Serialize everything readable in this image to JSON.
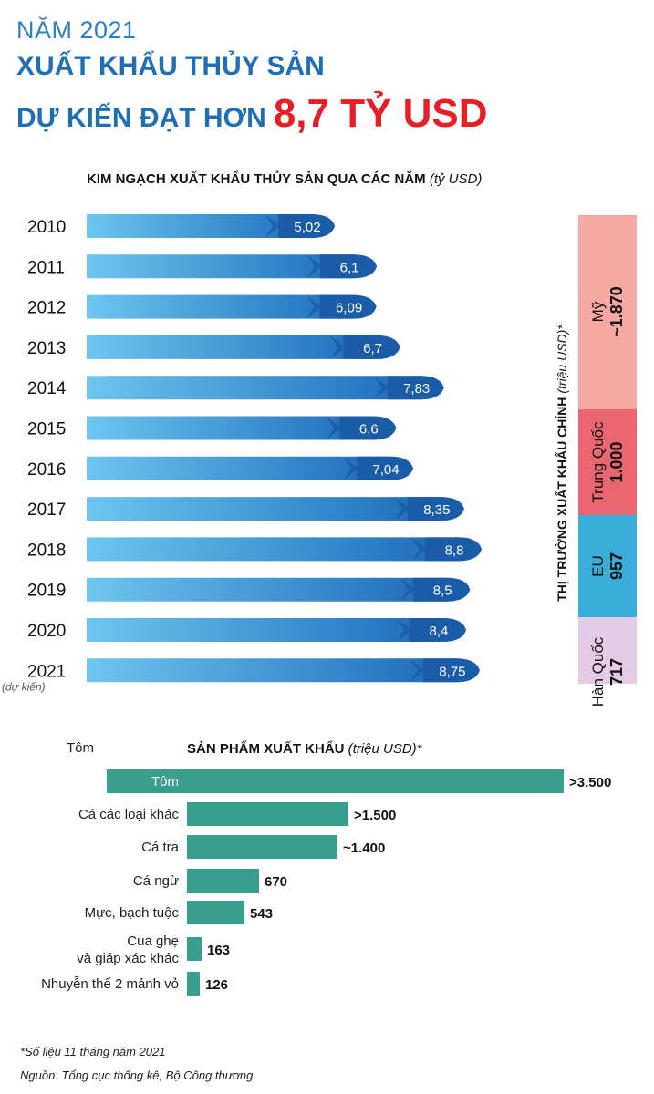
{
  "header": {
    "line1": "NĂM 2021",
    "line2": "XUẤT KHẨU THỦY SẢN",
    "line3": "DỰ KIẾN ĐẠT HƠN",
    "highlight": "8,7 TỶ USD"
  },
  "colors": {
    "title_blue": "#1f6fb5",
    "highlight_red": "#e41f26",
    "bar_dark": "#1b5ca8",
    "bar_light": "#6ec6ef",
    "product_teal": "#3a9e8f",
    "market_us": "#f6a8a2",
    "market_china": "#ea6670",
    "market_eu": "#3aaed8",
    "market_korea": "#e4cce6"
  },
  "chart_data": [
    {
      "type": "bar",
      "title": "KIM NGẠCH XUẤT KHẨU THỦY SẢN QUA CÁC NĂM",
      "unit": "(tỷ USD)",
      "categories": [
        "2010",
        "2011",
        "2012",
        "2013",
        "2014",
        "2015",
        "2016",
        "2017",
        "2018",
        "2019",
        "2020",
        "2021"
      ],
      "values": [
        5.02,
        6.1,
        6.09,
        6.7,
        7.83,
        6.6,
        7.04,
        8.35,
        8.8,
        8.5,
        8.4,
        8.75
      ],
      "value_labels": [
        "5,02",
        "6,1",
        "6,09",
        "6,7",
        "7,83",
        "6,6",
        "7,04",
        "8,35",
        "8,8",
        "8,5",
        "8,4",
        "8,75"
      ],
      "note_2021": "(dự kiến)"
    },
    {
      "type": "bar",
      "title": "THỊ TRƯỜNG XUẤT KHẨU CHÍNH",
      "unit": "(triệu USD)*",
      "markets": [
        {
          "name": "Mỹ",
          "label": "~1.870",
          "value": 1870
        },
        {
          "name": "Trung Quốc",
          "label": "1.000",
          "value": 1000
        },
        {
          "name": "EU",
          "label": "957",
          "value": 957
        },
        {
          "name": "Hàn Quốc",
          "label": "717",
          "value": 717
        }
      ]
    },
    {
      "type": "bar",
      "title": "SẢN PHẨM XUẤT KHẨU",
      "unit": "(triệu USD)*",
      "header_item": "Tôm",
      "categories": [
        "Tôm",
        "Cá các loại khác",
        "Cá tra",
        "Cá ngừ",
        "Mực, bạch tuộc",
        "Cua ghẹ và giáp xác khác",
        "Nhuyễn thể 2 mảnh vỏ"
      ],
      "values": [
        3500,
        1500,
        1400,
        670,
        543,
        163,
        126
      ],
      "value_labels": [
        ">3.500",
        ">1.500",
        "~1.400",
        "670",
        "543",
        "163",
        "126"
      ]
    }
  ],
  "footnotes": {
    "note": "*Số liệu 11 tháng năm 2021",
    "source": "Nguồn: Tổng cục thống kê, Bộ Công thương"
  }
}
